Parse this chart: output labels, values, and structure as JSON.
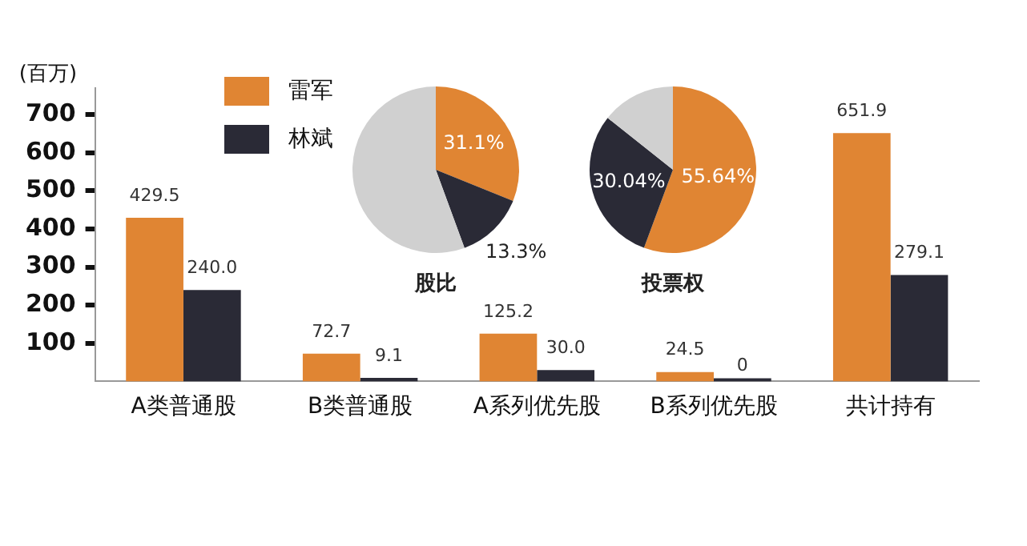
{
  "chart_data": [
    {
      "type": "bar",
      "ylabel": "(百万)",
      "categories": [
        "A类普通股",
        "B类普通股",
        "A系列优先股",
        "B系列优先股",
        "共计持有"
      ],
      "series": [
        {
          "name": "雷军",
          "color": "#e08533",
          "values": [
            429.5,
            72.7,
            125.2,
            24.5,
            651.9
          ],
          "value_labels": [
            "429.5",
            "72.7",
            "125.2",
            "24.5",
            "651.9"
          ]
        },
        {
          "name": "林斌",
          "color": "#2a2a36",
          "values": [
            240.0,
            9.1,
            30.0,
            0,
            279.1
          ],
          "value_labels": [
            "240.0",
            "9.1",
            "30.0",
            "0",
            "279.1"
          ]
        }
      ],
      "ylim": [
        0,
        770
      ],
      "yticks": [
        100,
        200,
        300,
        400,
        500,
        600,
        700
      ],
      "grid": false,
      "legend": "top left"
    },
    {
      "type": "pie",
      "title": "股比",
      "categories": [
        null,
        null,
        null
      ],
      "values": [
        31.1,
        13.3,
        55.6
      ],
      "colors": [
        "#e08533",
        "#2a2a36",
        "#d0d0d0"
      ],
      "value_labels": [
        "31.1%",
        "13.3%",
        null
      ]
    },
    {
      "type": "pie",
      "title": "投票权",
      "categories": [
        null,
        null,
        null
      ],
      "values": [
        55.64,
        30.04,
        14.32
      ],
      "colors": [
        "#e08533",
        "#2a2a36",
        "#d0d0d0"
      ],
      "value_labels": [
        "55.64%",
        "30.04%",
        null
      ]
    }
  ]
}
